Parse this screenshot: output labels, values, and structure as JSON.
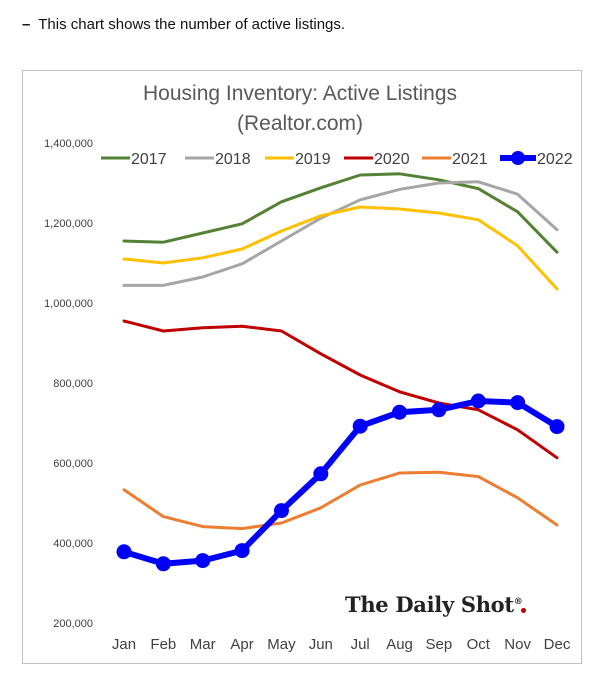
{
  "caption": {
    "dash": "–",
    "text": "This chart shows the number of active listings."
  },
  "logo": {
    "text": "The Daily Shot",
    "mark": "®"
  },
  "chart_data": {
    "type": "line",
    "title": "Housing Inventory: Active Listings",
    "subtitle": "(Realtor.com)",
    "xlabel": "",
    "ylabel": "",
    "categories": [
      "Jan",
      "Feb",
      "Mar",
      "Apr",
      "May",
      "Jun",
      "Jul",
      "Aug",
      "Sep",
      "Oct",
      "Nov",
      "Dec"
    ],
    "ylim": [
      200000,
      1400000
    ],
    "yticks": [
      200000,
      400000,
      600000,
      800000,
      1000000,
      1200000,
      1400000
    ],
    "ytick_labels": [
      "200,000",
      "400,000",
      "600,000",
      "800,000",
      "1,000,000",
      "1,200,000",
      "1,400,000"
    ],
    "grid": false,
    "legend_position": "top",
    "series": [
      {
        "name": "2017",
        "color": "#548235",
        "values": [
          1155000,
          1152000,
          1175000,
          1198000,
          1253000,
          1288000,
          1320000,
          1323000,
          1308000,
          1286000,
          1228000,
          1127000
        ]
      },
      {
        "name": "2018",
        "color": "#a6a6a6",
        "values": [
          1044000,
          1044000,
          1065000,
          1098000,
          1155000,
          1212000,
          1258000,
          1284000,
          1300000,
          1303000,
          1272000,
          1183000
        ]
      },
      {
        "name": "2019",
        "color": "#ffc000",
        "values": [
          1110000,
          1100000,
          1113000,
          1135000,
          1180000,
          1218000,
          1240000,
          1235000,
          1225000,
          1208000,
          1143000,
          1035000
        ]
      },
      {
        "name": "2020",
        "color": "#c00000",
        "values": [
          955000,
          930000,
          938000,
          942000,
          930000,
          873000,
          820000,
          778000,
          750000,
          733000,
          683000,
          613000
        ]
      },
      {
        "name": "2021",
        "color": "#ed7d31",
        "values": [
          533000,
          466000,
          441000,
          436000,
          450000,
          488000,
          545000,
          575000,
          577000,
          566000,
          513000,
          445000
        ]
      },
      {
        "name": "2022",
        "color": "#0000ff",
        "markers": true,
        "values": [
          378000,
          348000,
          356000,
          381000,
          481000,
          573000,
          692000,
          727000,
          733000,
          755000,
          751000,
          691000
        ]
      }
    ]
  }
}
